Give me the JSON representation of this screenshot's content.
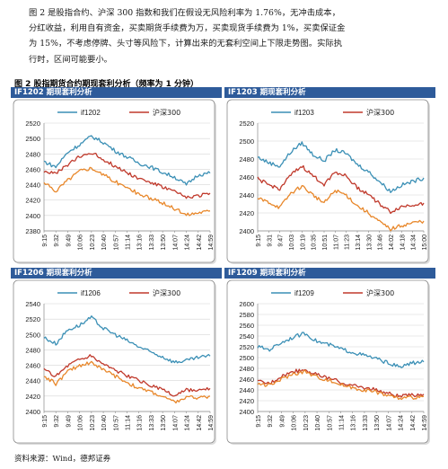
{
  "paragraph": [
    "图 2 是股指合约、沪深 300 指数和我们在假设无风险利率为 1.76%，无冲击成本，",
    "分红收益，利用自有资金，买卖期货手续费为万，买卖现货手续费为 1%，买卖保证金",
    "为 15%，不考虑停牌、头寸等风险下，计算出来的无套利空间上下限走势图。实际执",
    "行时，区间可能要小。"
  ],
  "figure_title": "图 2 股指期货合约期现套利分析（频率为 1 分钟）",
  "source": "资料来源：Wind，德邦证券",
  "colors": {
    "futures": "#3a8fb5",
    "index": "#c0392b",
    "bound": "#e8872a"
  },
  "chart_data": [
    {
      "type": "line",
      "panel_title": "IF1202 期现套利分析",
      "categories": [
        "9:15",
        "9:32",
        "9:49",
        "10:06",
        "10:23",
        "10:40",
        "10:57",
        "11:14",
        "13:16",
        "13:33",
        "13:50",
        "14:07",
        "14:24",
        "14:42",
        "14:59"
      ],
      "ylim": [
        2380,
        2520
      ],
      "yticks": [
        2380,
        2400,
        2420,
        2440,
        2460,
        2480,
        2500,
        2520
      ],
      "legend": [
        "if1202",
        "沪深300"
      ],
      "series": [
        {
          "name": "if1202",
          "values": [
            2470,
            2463,
            2482,
            2492,
            2503,
            2495,
            2484,
            2476,
            2468,
            2463,
            2456,
            2450,
            2440,
            2453,
            2455
          ]
        },
        {
          "name": "沪深300",
          "values": [
            2458,
            2454,
            2466,
            2476,
            2482,
            2473,
            2464,
            2456,
            2448,
            2443,
            2437,
            2431,
            2423,
            2426,
            2429
          ]
        },
        {
          "values": [
            2442,
            2432,
            2446,
            2458,
            2462,
            2453,
            2444,
            2436,
            2428,
            2422,
            2416,
            2409,
            2401,
            2404,
            2406
          ]
        }
      ]
    },
    {
      "type": "line",
      "panel_title": "IF1203 期现套利分析",
      "categories": [
        "9:15",
        "9:31",
        "9:47",
        "10:03",
        "10:19",
        "10:35",
        "10:51",
        "11:07",
        "11:23",
        "13:14",
        "13:30",
        "13:46",
        "14:02",
        "14:18",
        "14:34",
        "15:00"
      ],
      "ylim": [
        2400,
        2520
      ],
      "yticks": [
        2400,
        2420,
        2440,
        2460,
        2480,
        2500,
        2520
      ],
      "legend": [
        "if1203",
        "沪深300"
      ],
      "series": [
        {
          "name": "if1203",
          "values": [
            2482,
            2476,
            2472,
            2488,
            2498,
            2485,
            2478,
            2490,
            2486,
            2474,
            2466,
            2455,
            2444,
            2451,
            2455,
            2459
          ]
        },
        {
          "name": "沪深300",
          "values": [
            2458,
            2451,
            2447,
            2462,
            2472,
            2461,
            2452,
            2466,
            2461,
            2448,
            2441,
            2430,
            2421,
            2427,
            2429,
            2431
          ]
        },
        {
          "values": [
            2436,
            2432,
            2426,
            2442,
            2450,
            2440,
            2431,
            2445,
            2440,
            2428,
            2420,
            2410,
            2402,
            2406,
            2409,
            2411
          ]
        }
      ]
    },
    {
      "type": "line",
      "panel_title": "IF1206 期现套利分析",
      "categories": [
        "9:15",
        "9:32",
        "9:49",
        "10:06",
        "10:23",
        "10:40",
        "10:57",
        "11:14",
        "13:16",
        "13:33",
        "13:50",
        "14:07",
        "14:24",
        "14:42",
        "14:59"
      ],
      "ylim": [
        2400,
        2540
      ],
      "yticks": [
        2400,
        2420,
        2440,
        2460,
        2480,
        2500,
        2520,
        2540
      ],
      "legend": [
        "if1206",
        "沪深300"
      ],
      "series": [
        {
          "name": "if1206",
          "values": [
            2496,
            2488,
            2506,
            2512,
            2522,
            2508,
            2500,
            2492,
            2484,
            2477,
            2471,
            2464,
            2466,
            2470,
            2472
          ]
        },
        {
          "name": "沪深300",
          "values": [
            2454,
            2446,
            2460,
            2468,
            2472,
            2462,
            2454,
            2446,
            2440,
            2434,
            2428,
            2420,
            2428,
            2426,
            2430
          ]
        },
        {
          "values": [
            2446,
            2436,
            2452,
            2460,
            2464,
            2454,
            2446,
            2438,
            2430,
            2426,
            2419,
            2412,
            2418,
            2418,
            2420
          ]
        }
      ]
    },
    {
      "type": "line",
      "panel_title": "IF1209 期现套利分析",
      "categories": [
        "9:15",
        "9:32",
        "9:49",
        "10:06",
        "10:23",
        "10:40",
        "10:57",
        "11:14",
        "13:16",
        "13:33",
        "13:50",
        "14:07",
        "14:24",
        "14:42",
        "14:59"
      ],
      "ylim": [
        2400,
        2600
      ],
      "yticks": [
        2400,
        2420,
        2440,
        2460,
        2480,
        2500,
        2520,
        2540,
        2560,
        2580,
        2600
      ],
      "legend": [
        "if1209",
        "沪深300"
      ],
      "series": [
        {
          "name": "if1209",
          "values": [
            2520,
            2515,
            2528,
            2538,
            2545,
            2530,
            2524,
            2516,
            2510,
            2504,
            2498,
            2490,
            2482,
            2490,
            2492
          ]
        },
        {
          "name": "沪深300",
          "values": [
            2456,
            2452,
            2466,
            2474,
            2478,
            2468,
            2462,
            2454,
            2448,
            2444,
            2440,
            2434,
            2428,
            2430,
            2432
          ]
        },
        {
          "values": [
            2452,
            2448,
            2460,
            2470,
            2474,
            2464,
            2458,
            2450,
            2444,
            2440,
            2436,
            2430,
            2424,
            2426,
            2428
          ]
        }
      ]
    }
  ]
}
